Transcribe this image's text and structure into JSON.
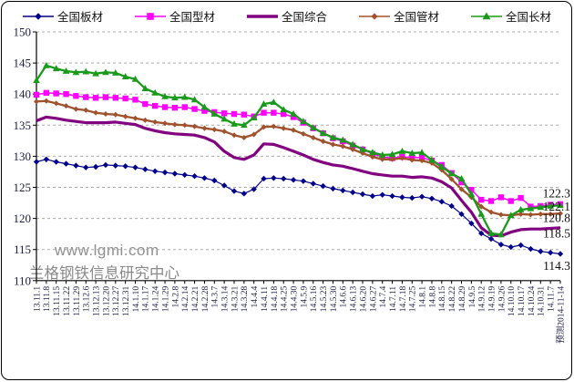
{
  "watermarks": {
    "site": "www.lgmi.com",
    "org": "兰格钢铁信息研究中心"
  },
  "chart_data": {
    "type": "line",
    "title": "",
    "legend_position": "top",
    "grid": "horizontal-dashed",
    "ylim": [
      110,
      150
    ],
    "ytick_step": 5,
    "y_ticks": [
      150,
      145,
      140,
      135,
      130,
      125,
      120,
      115,
      110
    ],
    "x_labels": [
      "13.11.1",
      "13.11.8",
      "13.11.15",
      "13.11.22",
      "13.11.29",
      "13.12.6",
      "13.12.13",
      "13.12.20",
      "13.12.27",
      "13.12.31",
      "14.1.10",
      "14.1.17",
      "14.1.24",
      "14.1.29",
      "14.2.8",
      "14.2.14",
      "14.2.21",
      "14.2.28",
      "14.3.7",
      "14.3.14",
      "14.3.21",
      "14.3.28",
      "14.4.4",
      "14.4.11",
      "14.4.18",
      "14.4.25",
      "14.4.30",
      "14.5.9",
      "14.5.16",
      "14.5.23",
      "14.5.30",
      "14.6.6",
      "14.6.13",
      "14.6.20",
      "14.6.27",
      "14.7.4",
      "14.7.11",
      "14.7.18",
      "14.7.25",
      "14.8.1",
      "14.8.8",
      "14.8.15",
      "14.8.22",
      "14.8.29",
      "14.9.5",
      "14.9.12",
      "14.9.19",
      "14.9.26",
      "14.10.10",
      "14.10.17",
      "14.10.24",
      "14.10.31",
      "14.11.7",
      "预测2014-11-14"
    ],
    "series": [
      {
        "name": "全国板材",
        "color": "#00008B",
        "marker": "diamond",
        "line_width": 1.2,
        "marker_size": 3.2,
        "end_label": "114.3",
        "end_label_dy": 13,
        "values": [
          129.1,
          129.5,
          129.1,
          128.8,
          128.5,
          128.2,
          128.3,
          128.6,
          128.5,
          128.4,
          128.2,
          127.9,
          127.6,
          127.4,
          127.2,
          127.0,
          126.8,
          126.5,
          126.1,
          125.3,
          124.4,
          124.0,
          124.7,
          126.4,
          126.5,
          126.4,
          126.2,
          126.0,
          125.6,
          125.2,
          124.8,
          124.5,
          124.2,
          123.9,
          123.6,
          123.8,
          123.6,
          123.4,
          123.3,
          123.5,
          123.2,
          122.7,
          122.0,
          120.7,
          119.2,
          117.6,
          116.7,
          115.8,
          115.4,
          115.7,
          115.1,
          114.7,
          114.5,
          114.3
        ]
      },
      {
        "name": "全国型材",
        "color": "#FF00FF",
        "marker": "square",
        "line_width": 1.5,
        "marker_size": 3.2,
        "end_label": "122.3",
        "end_label_dy": -12,
        "values": [
          139.9,
          140.2,
          140.1,
          140.0,
          139.7,
          139.5,
          139.4,
          139.5,
          139.4,
          139.3,
          139.1,
          138.4,
          138.1,
          137.9,
          137.8,
          137.9,
          137.6,
          137.3,
          137.1,
          136.9,
          136.8,
          136.7,
          136.4,
          137.0,
          137.0,
          136.8,
          136.3,
          135.4,
          134.5,
          133.7,
          132.9,
          132.4,
          131.7,
          131.1,
          130.4,
          129.9,
          129.7,
          129.9,
          129.8,
          129.8,
          129.3,
          128.6,
          127.3,
          125.8,
          124.6,
          123.0,
          122.8,
          123.4,
          122.8,
          123.3,
          121.9,
          122.0,
          122.2,
          122.3
        ]
      },
      {
        "name": "全国综合",
        "color": "#800080",
        "marker": "none",
        "line_width": 3.2,
        "marker_size": 0,
        "end_label": "118.5",
        "end_label_dy": 6,
        "values": [
          135.7,
          136.3,
          136.1,
          135.8,
          135.6,
          135.4,
          135.4,
          135.4,
          135.5,
          135.3,
          135.1,
          134.5,
          134.1,
          133.8,
          133.6,
          133.5,
          133.4,
          133.0,
          132.3,
          130.8,
          129.8,
          129.5,
          130.2,
          132.0,
          131.9,
          131.4,
          130.8,
          130.2,
          129.5,
          129.0,
          128.6,
          128.4,
          128.0,
          127.6,
          127.2,
          127.0,
          126.8,
          126.8,
          126.6,
          126.7,
          126.5,
          125.9,
          124.9,
          122.9,
          121.0,
          118.5,
          117.3,
          117.2,
          117.8,
          118.2,
          118.3,
          118.3,
          118.4,
          118.5
        ]
      },
      {
        "name": "全国管材",
        "color": "#A0522D",
        "marker": "diamond",
        "line_width": 2.3,
        "marker_size": 3.0,
        "end_label": "120.8",
        "end_label_dy": 5,
        "values": [
          138.8,
          138.9,
          138.5,
          138.1,
          137.6,
          137.4,
          137.0,
          136.8,
          136.7,
          136.4,
          136.1,
          135.8,
          135.5,
          135.3,
          135.1,
          135.0,
          134.8,
          134.5,
          134.3,
          134.0,
          133.4,
          133.0,
          133.5,
          134.7,
          134.8,
          134.5,
          134.2,
          133.6,
          133.0,
          132.4,
          131.9,
          131.6,
          131.1,
          130.5,
          129.9,
          129.5,
          129.5,
          129.7,
          129.4,
          129.3,
          128.9,
          127.8,
          126.3,
          124.7,
          123.4,
          121.9,
          121.0,
          120.6,
          120.5,
          120.7,
          120.6,
          120.7,
          120.7,
          120.8
        ]
      },
      {
        "name": "全国长材",
        "color": "#1A9A1A",
        "marker": "triangle",
        "line_width": 2.3,
        "marker_size": 4.0,
        "end_label": "122.1",
        "end_label_dy": 1,
        "values": [
          142.2,
          144.6,
          144.1,
          143.7,
          143.5,
          143.6,
          143.3,
          143.5,
          143.4,
          142.8,
          142.4,
          140.9,
          140.2,
          139.6,
          139.4,
          139.5,
          139.1,
          137.9,
          136.8,
          136.0,
          135.2,
          135.0,
          136.2,
          138.4,
          138.7,
          137.5,
          136.8,
          135.6,
          134.6,
          133.7,
          133.0,
          132.6,
          131.9,
          131.1,
          130.6,
          130.2,
          130.3,
          130.8,
          130.5,
          130.6,
          129.4,
          128.3,
          127.2,
          126.4,
          123.9,
          120.7,
          117.6,
          117.4,
          120.5,
          121.4,
          121.6,
          121.8,
          122.0,
          122.1
        ]
      }
    ]
  }
}
